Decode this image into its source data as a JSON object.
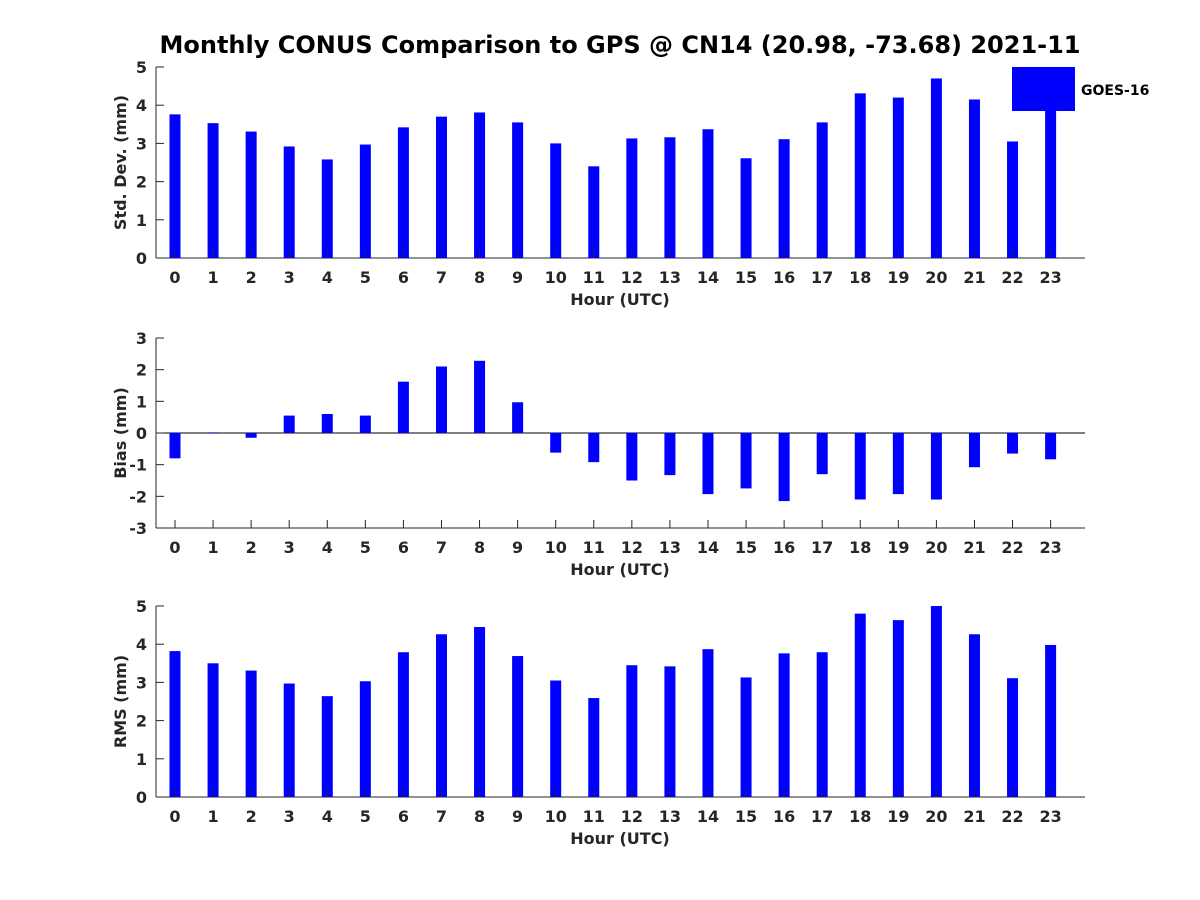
{
  "title": "Monthly CONUS Comparison to GPS @ CN14 (20.98, -73.68) 2021-11",
  "colors": {
    "bar": "#0000ff",
    "axis": "#262626",
    "background": "#ffffff"
  },
  "legend": {
    "label": "GOES-16",
    "placement": "top-right"
  },
  "chart_data": [
    {
      "type": "bar",
      "xlabel": "Hour (UTC)",
      "ylabel": "Std. Dev. (mm)",
      "ylim": [
        0,
        5
      ],
      "yticks": [
        0,
        1,
        2,
        3,
        4,
        5
      ],
      "categories": [
        "0",
        "1",
        "2",
        "3",
        "4",
        "5",
        "6",
        "7",
        "8",
        "9",
        "10",
        "11",
        "12",
        "13",
        "14",
        "15",
        "16",
        "17",
        "18",
        "19",
        "20",
        "21",
        "22",
        "23"
      ],
      "series": [
        {
          "name": "GOES-16",
          "values": [
            3.76,
            3.53,
            3.31,
            2.92,
            2.58,
            2.97,
            3.42,
            3.7,
            3.81,
            3.55,
            3.0,
            2.4,
            3.13,
            3.16,
            3.37,
            2.61,
            3.11,
            3.55,
            4.31,
            4.2,
            4.7,
            4.15,
            3.05,
            3.85
          ]
        }
      ]
    },
    {
      "type": "bar",
      "xlabel": "Hour (UTC)",
      "ylabel": "Bias (mm)",
      "ylim": [
        -3,
        3
      ],
      "yticks": [
        -3,
        -2,
        -1,
        0,
        1,
        2,
        3
      ],
      "categories": [
        "0",
        "1",
        "2",
        "3",
        "4",
        "5",
        "6",
        "7",
        "8",
        "9",
        "10",
        "11",
        "12",
        "13",
        "14",
        "15",
        "16",
        "17",
        "18",
        "19",
        "20",
        "21",
        "22",
        "23"
      ],
      "series": [
        {
          "name": "GOES-16",
          "values": [
            -0.8,
            0.02,
            -0.15,
            0.55,
            0.6,
            0.55,
            1.62,
            2.1,
            2.28,
            0.97,
            -0.62,
            -0.92,
            -1.5,
            -1.33,
            -1.93,
            -1.75,
            -2.15,
            -1.3,
            -2.1,
            -1.93,
            -2.1,
            -1.08,
            -0.65,
            -0.83
          ]
        }
      ]
    },
    {
      "type": "bar",
      "xlabel": "Hour (UTC)",
      "ylabel": "RMS (mm)",
      "ylim": [
        0,
        5
      ],
      "yticks": [
        0,
        1,
        2,
        3,
        4,
        5
      ],
      "categories": [
        "0",
        "1",
        "2",
        "3",
        "4",
        "5",
        "6",
        "7",
        "8",
        "9",
        "10",
        "11",
        "12",
        "13",
        "14",
        "15",
        "16",
        "17",
        "18",
        "19",
        "20",
        "21",
        "22",
        "23"
      ],
      "series": [
        {
          "name": "GOES-16",
          "values": [
            3.82,
            3.5,
            3.31,
            2.97,
            2.64,
            3.03,
            3.79,
            4.26,
            4.45,
            3.69,
            3.05,
            2.59,
            3.45,
            3.42,
            3.87,
            3.13,
            3.76,
            3.79,
            4.8,
            4.63,
            5.0,
            4.26,
            3.11,
            3.98
          ]
        }
      ]
    }
  ]
}
